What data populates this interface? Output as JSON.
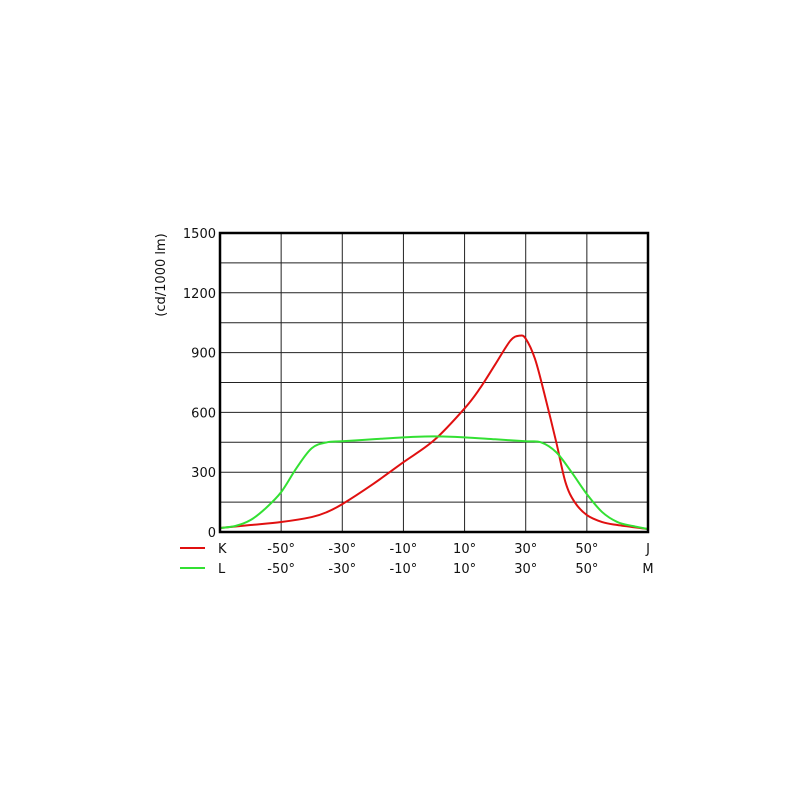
{
  "chart_data": {
    "type": "line",
    "title": "",
    "ylabel": "(cd/1000 lm)",
    "xlim": [
      -70,
      70
    ],
    "ylim": [
      0,
      1500
    ],
    "grid": true,
    "y_ticks": [
      0,
      300,
      600,
      900,
      1200,
      1500
    ],
    "y_tick_labels": [
      "0",
      "300",
      "600",
      "900",
      "1200",
      "1500"
    ],
    "x_ticks": [
      -50,
      -30,
      -10,
      10,
      30,
      50
    ],
    "x_tick_rows": [
      {
        "labels": [
          "-50°",
          "-30°",
          "-10°",
          "10°",
          "30°",
          "50°"
        ],
        "end_label": "J"
      },
      {
        "labels": [
          "-50°",
          "-30°",
          "-10°",
          "10°",
          "30°",
          "50°"
        ],
        "end_label": "M"
      }
    ],
    "legend_placement": "bottom-left",
    "series": [
      {
        "name": "K",
        "color": "#e01010",
        "x": [
          -70,
          -60,
          -50,
          -40,
          -35,
          -30,
          -20,
          -10,
          0,
          10,
          15,
          20,
          25,
          28,
          30,
          33,
          36,
          40,
          43,
          46,
          50,
          55,
          60,
          70
        ],
        "y": [
          20,
          35,
          50,
          75,
          100,
          140,
          240,
          350,
          460,
          620,
          720,
          840,
          960,
          985,
          970,
          870,
          700,
          450,
          250,
          150,
          85,
          50,
          35,
          15
        ]
      },
      {
        "name": "L",
        "color": "#33e033",
        "x": [
          -70,
          -65,
          -60,
          -55,
          -50,
          -45,
          -40,
          -35,
          -30,
          -20,
          -10,
          0,
          10,
          20,
          30,
          35,
          40,
          45,
          50,
          55,
          60,
          65,
          70
        ],
        "y": [
          20,
          30,
          60,
          120,
          200,
          320,
          420,
          450,
          455,
          465,
          475,
          480,
          475,
          465,
          455,
          450,
          400,
          300,
          190,
          100,
          50,
          30,
          15
        ]
      }
    ]
  }
}
